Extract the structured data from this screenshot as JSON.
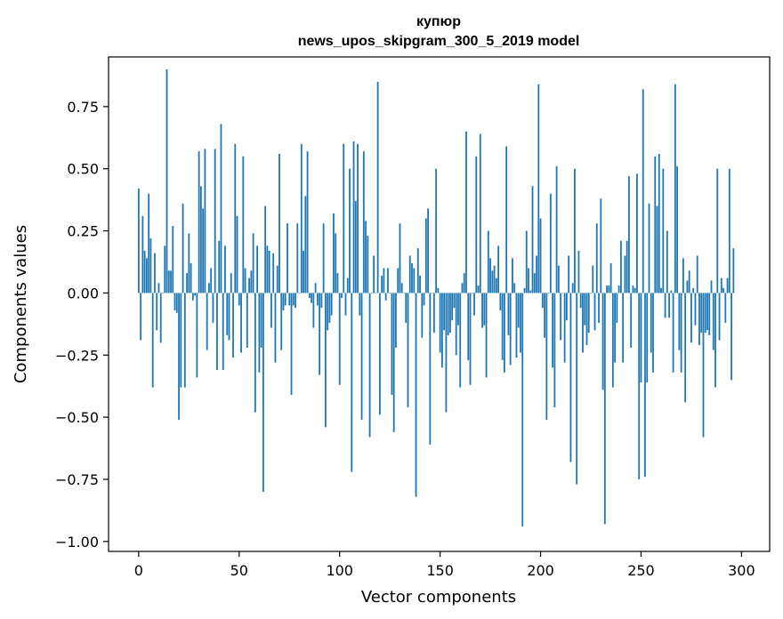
{
  "chart_data": {
    "type": "bar",
    "title": "купюр",
    "subtitle": "news_upos_skipgram_300_5_2019 model",
    "xlabel": "Vector components",
    "ylabel": "Components values",
    "xlim": [
      -15,
      314
    ],
    "ylim": [
      -1.04,
      0.95
    ],
    "xticks": [
      0,
      50,
      100,
      150,
      200,
      250,
      300
    ],
    "xtick_labels": [
      "0",
      "50",
      "100",
      "150",
      "200",
      "250",
      "300"
    ],
    "yticks": [
      -1.0,
      -0.75,
      -0.5,
      -0.25,
      0.0,
      0.25,
      0.5,
      0.75
    ],
    "ytick_labels": [
      "−1.00",
      "−0.75",
      "−0.50",
      "−0.25",
      "0.00",
      "0.25",
      "0.50",
      "0.75"
    ],
    "bar_color": "#1f77b4",
    "grid": false,
    "values": [
      0.42,
      -0.19,
      0.31,
      0.17,
      0.14,
      0.4,
      0.22,
      -0.38,
      0.16,
      -0.15,
      0.04,
      -0.2,
      0.0,
      0.19,
      0.9,
      0.09,
      0.09,
      0.27,
      -0.07,
      -0.08,
      -0.51,
      -0.38,
      0.36,
      -0.38,
      0.08,
      0.24,
      0.12,
      -0.03,
      -0.01,
      -0.34,
      0.57,
      0.43,
      0.34,
      0.58,
      -0.23,
      0.04,
      0.1,
      -0.12,
      0.58,
      -0.31,
      0.21,
      0.68,
      -0.31,
      0.19,
      -0.17,
      -0.19,
      0.08,
      -0.26,
      0.6,
      0.31,
      -0.05,
      -0.24,
      0.55,
      0.1,
      -0.22,
      0.06,
      0.09,
      0.24,
      -0.48,
      0.19,
      -0.32,
      -0.22,
      -0.8,
      0.35,
      0.19,
      0.17,
      -0.14,
      0.16,
      -0.28,
      0.11,
      0.56,
      -0.23,
      -0.07,
      -0.05,
      0.28,
      -0.05,
      -0.41,
      -0.05,
      -0.06,
      0.28,
      0.0,
      0.6,
      0.17,
      0.39,
      0.57,
      -0.02,
      -0.04,
      -0.14,
      0.04,
      -0.05,
      -0.33,
      -0.06,
      0.28,
      -0.54,
      -0.15,
      -0.12,
      -0.09,
      0.32,
      0.24,
      0.08,
      -0.37,
      -0.02,
      0.6,
      -0.09,
      0.06,
      0.5,
      -0.72,
      0.61,
      0.37,
      0.6,
      -0.09,
      -0.51,
      0.57,
      0.29,
      0.23,
      -0.58,
      0.0,
      0.15,
      0.0,
      0.85,
      -0.49,
      0.07,
      0.1,
      -0.03,
      0.1,
      0.0,
      -0.41,
      -0.56,
      -0.22,
      0.1,
      0.28,
      0.04,
      0.0,
      -0.12,
      -0.46,
      0.15,
      0.12,
      0.1,
      -0.82,
      0.18,
      0.07,
      -0.18,
      -0.05,
      0.3,
      0.34,
      -0.61,
      0.0,
      -0.16,
      0.5,
      0.02,
      -0.24,
      -0.3,
      -0.15,
      -0.48,
      -0.17,
      -0.16,
      -0.11,
      -0.06,
      -0.25,
      -0.13,
      -0.38,
      0.04,
      0.08,
      0.65,
      -0.27,
      -0.37,
      0.0,
      -0.09,
      0.55,
      0.03,
      0.64,
      -0.14,
      -0.13,
      -0.34,
      0.25,
      0.14,
      0.09,
      0.11,
      0.06,
      0.19,
      -0.07,
      -0.27,
      -0.32,
      0.59,
      -0.17,
      -0.29,
      0.14,
      0.04,
      -0.26,
      -0.14,
      -0.24,
      -0.94,
      0.02,
      0.25,
      0.1,
      0.01,
      0.43,
      0.08,
      0.15,
      0.84,
      0.3,
      -0.06,
      -0.18,
      -0.51,
      0.0,
      0.4,
      -0.3,
      -0.46,
      0.51,
      0.11,
      -0.19,
      0.0,
      -0.28,
      -0.11,
      0.15,
      -0.68,
      0.04,
      0.5,
      -0.77,
      0.17,
      -0.06,
      -0.24,
      -0.13,
      -0.21,
      -0.16,
      0.0,
      0.11,
      -0.15,
      0.28,
      -0.12,
      0.38,
      -0.39,
      -0.93,
      0.03,
      0.03,
      0.12,
      -0.38,
      -0.28,
      -0.12,
      0.03,
      0.21,
      -0.28,
      0.15,
      0.21,
      0.47,
      -0.22,
      0.03,
      0.02,
      0.48,
      -0.75,
      -0.36,
      0.82,
      -0.74,
      -0.36,
      0.36,
      -0.24,
      -0.32,
      0.55,
      0.35,
      0.56,
      0.02,
      0.5,
      -0.1,
      0.25,
      -0.1,
      0.01,
      -0.32,
      0.84,
      0.51,
      -0.23,
      -0.32,
      0.14,
      -0.44,
      0.05,
      0.09,
      -0.2,
      0.02,
      -0.13,
      0.15,
      -0.21,
      -0.16,
      -0.58,
      -0.16,
      -0.15,
      -0.17,
      0.05,
      -0.23,
      -0.38,
      0.5,
      -0.19,
      0.06,
      0.02,
      -0.12,
      0.06,
      0.5,
      -0.35,
      0.18
    ]
  }
}
